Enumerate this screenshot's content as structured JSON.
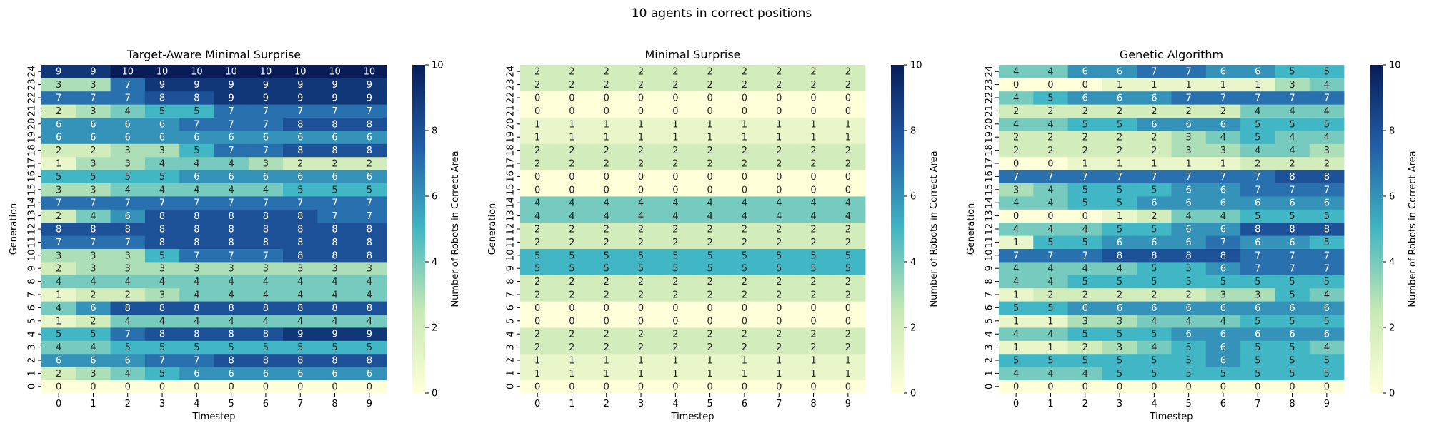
{
  "figure": {
    "suptitle": "10 agents in correct positions"
  },
  "colorbar": {
    "min": 0,
    "max": 10,
    "ticks": [
      0,
      2,
      4,
      6,
      8,
      10
    ],
    "colors": [
      "#ffffd9",
      "#c7e9b4",
      "#41b6c4",
      "#225ea8",
      "#081d58"
    ]
  },
  "chart_data": [
    {
      "type": "heatmap",
      "title": "Target-Aware Minimal Surprise",
      "xlabel": "Timestep",
      "ylabel": "Generation",
      "colorbar_label": "Number of Robots in Correct Area",
      "x": [
        0,
        1,
        2,
        3,
        4,
        5,
        6,
        7,
        8,
        9
      ],
      "y": [
        0,
        1,
        2,
        3,
        4,
        5,
        6,
        7,
        8,
        9,
        10,
        11,
        12,
        13,
        14,
        15,
        16,
        17,
        18,
        19,
        20,
        21,
        22,
        23,
        24
      ],
      "values": [
        [
          0,
          0,
          0,
          0,
          0,
          0,
          0,
          0,
          0,
          0
        ],
        [
          2,
          3,
          4,
          5,
          6,
          6,
          6,
          6,
          6,
          6
        ],
        [
          6,
          6,
          6,
          7,
          7,
          8,
          8,
          8,
          8,
          8
        ],
        [
          4,
          4,
          5,
          5,
          5,
          5,
          5,
          5,
          5,
          5
        ],
        [
          5,
          5,
          7,
          8,
          8,
          8,
          8,
          9,
          9,
          9
        ],
        [
          1,
          2,
          4,
          4,
          4,
          4,
          4,
          4,
          4,
          4
        ],
        [
          4,
          6,
          8,
          8,
          8,
          8,
          8,
          8,
          8,
          8
        ],
        [
          1,
          2,
          2,
          3,
          4,
          4,
          4,
          4,
          4,
          4
        ],
        [
          4,
          4,
          4,
          4,
          4,
          4,
          4,
          4,
          4,
          4
        ],
        [
          2,
          3,
          3,
          3,
          3,
          3,
          3,
          3,
          3,
          3
        ],
        [
          3,
          3,
          3,
          5,
          7,
          7,
          7,
          8,
          8,
          8
        ],
        [
          7,
          7,
          7,
          8,
          8,
          8,
          8,
          8,
          8,
          8
        ],
        [
          8,
          8,
          8,
          8,
          8,
          8,
          8,
          8,
          8,
          8
        ],
        [
          2,
          4,
          6,
          8,
          8,
          8,
          8,
          8,
          7,
          7
        ],
        [
          7,
          7,
          7,
          7,
          7,
          7,
          7,
          7,
          7,
          7
        ],
        [
          3,
          3,
          4,
          4,
          4,
          4,
          4,
          5,
          5,
          5
        ],
        [
          5,
          5,
          5,
          5,
          6,
          6,
          6,
          6,
          6,
          6
        ],
        [
          1,
          3,
          3,
          4,
          4,
          4,
          3,
          2,
          2,
          2
        ],
        [
          2,
          2,
          3,
          3,
          5,
          7,
          7,
          8,
          8,
          8
        ],
        [
          6,
          6,
          6,
          6,
          6,
          6,
          6,
          6,
          6,
          6
        ],
        [
          6,
          6,
          6,
          6,
          7,
          7,
          7,
          8,
          8,
          8
        ],
        [
          2,
          3,
          4,
          5,
          5,
          7,
          7,
          7,
          7,
          7
        ],
        [
          7,
          7,
          7,
          8,
          8,
          9,
          9,
          9,
          9,
          9
        ],
        [
          3,
          3,
          7,
          9,
          9,
          9,
          9,
          9,
          9,
          9
        ],
        [
          9,
          9,
          10,
          10,
          10,
          10,
          10,
          10,
          10,
          10
        ]
      ]
    },
    {
      "type": "heatmap",
      "title": "Minimal Surprise",
      "xlabel": "Timestep",
      "ylabel": "Generation",
      "colorbar_label": "Number of Robots in Correct Area",
      "x": [
        0,
        1,
        2,
        3,
        4,
        5,
        6,
        7,
        8,
        9
      ],
      "y": [
        0,
        1,
        2,
        3,
        4,
        5,
        6,
        7,
        8,
        9,
        10,
        11,
        12,
        13,
        14,
        15,
        16,
        17,
        18,
        19,
        20,
        21,
        22,
        23,
        24
      ],
      "values": [
        [
          0,
          0,
          0,
          0,
          0,
          0,
          0,
          0,
          0,
          0
        ],
        [
          1,
          1,
          1,
          1,
          1,
          1,
          1,
          1,
          1,
          1
        ],
        [
          1,
          1,
          1,
          1,
          1,
          1,
          1,
          1,
          1,
          1
        ],
        [
          2,
          2,
          2,
          2,
          2,
          2,
          2,
          2,
          2,
          2
        ],
        [
          2,
          2,
          2,
          2,
          2,
          2,
          2,
          2,
          2,
          2
        ],
        [
          0,
          0,
          0,
          0,
          0,
          0,
          0,
          0,
          0,
          0
        ],
        [
          0,
          0,
          0,
          0,
          0,
          0,
          0,
          0,
          0,
          0
        ],
        [
          2,
          2,
          2,
          2,
          2,
          2,
          2,
          2,
          2,
          2
        ],
        [
          2,
          2,
          2,
          2,
          2,
          2,
          2,
          2,
          2,
          2
        ],
        [
          5,
          5,
          5,
          5,
          5,
          5,
          5,
          5,
          5,
          5
        ],
        [
          5,
          5,
          5,
          5,
          5,
          5,
          5,
          5,
          5,
          5
        ],
        [
          2,
          2,
          2,
          2,
          2,
          2,
          2,
          2,
          2,
          2
        ],
        [
          2,
          2,
          2,
          2,
          2,
          2,
          2,
          2,
          2,
          2
        ],
        [
          4,
          4,
          4,
          4,
          4,
          4,
          4,
          4,
          4,
          4
        ],
        [
          4,
          4,
          4,
          4,
          4,
          4,
          4,
          4,
          4,
          4
        ],
        [
          0,
          0,
          0,
          0,
          0,
          0,
          0,
          0,
          0,
          0
        ],
        [
          0,
          0,
          0,
          0,
          0,
          0,
          0,
          0,
          0,
          0
        ],
        [
          2,
          2,
          2,
          2,
          2,
          2,
          2,
          2,
          2,
          2
        ],
        [
          2,
          2,
          2,
          2,
          2,
          2,
          2,
          2,
          2,
          2
        ],
        [
          1,
          1,
          1,
          1,
          1,
          1,
          1,
          1,
          1,
          1
        ],
        [
          1,
          1,
          1,
          1,
          1,
          1,
          1,
          1,
          1,
          1
        ],
        [
          0,
          0,
          0,
          0,
          0,
          0,
          0,
          0,
          0,
          0
        ],
        [
          0,
          0,
          0,
          0,
          0,
          0,
          0,
          0,
          0,
          0
        ],
        [
          2,
          2,
          2,
          2,
          2,
          2,
          2,
          2,
          2,
          2
        ],
        [
          2,
          2,
          2,
          2,
          2,
          2,
          2,
          2,
          2,
          2
        ]
      ]
    },
    {
      "type": "heatmap",
      "title": "Genetic Algorithm",
      "xlabel": "Timestep",
      "ylabel": "Generation",
      "colorbar_label": "Number of Robots in Correct Area",
      "x": [
        0,
        1,
        2,
        3,
        4,
        5,
        6,
        7,
        8,
        9
      ],
      "y": [
        0,
        1,
        2,
        3,
        4,
        5,
        6,
        7,
        8,
        9,
        10,
        11,
        12,
        13,
        14,
        15,
        16,
        17,
        18,
        19,
        20,
        21,
        22,
        23,
        24
      ],
      "values": [
        [
          0,
          0,
          0,
          0,
          0,
          0,
          0,
          0,
          0,
          0
        ],
        [
          4,
          4,
          4,
          5,
          5,
          5,
          5,
          5,
          5,
          5
        ],
        [
          5,
          5,
          5,
          5,
          5,
          5,
          6,
          5,
          5,
          5
        ],
        [
          1,
          1,
          2,
          3,
          4,
          5,
          6,
          5,
          5,
          4
        ],
        [
          4,
          4,
          5,
          5,
          5,
          6,
          6,
          6,
          6,
          6
        ],
        [
          1,
          1,
          3,
          3,
          4,
          4,
          4,
          5,
          5,
          5
        ],
        [
          5,
          5,
          6,
          6,
          6,
          6,
          6,
          6,
          6,
          6
        ],
        [
          1,
          2,
          2,
          2,
          2,
          2,
          3,
          3,
          5,
          4
        ],
        [
          4,
          4,
          5,
          5,
          5,
          5,
          5,
          5,
          5,
          5
        ],
        [
          4,
          4,
          4,
          4,
          5,
          5,
          6,
          7,
          7,
          7
        ],
        [
          7,
          7,
          7,
          8,
          8,
          8,
          8,
          7,
          7,
          7
        ],
        [
          1,
          5,
          5,
          6,
          6,
          6,
          7,
          6,
          6,
          5
        ],
        [
          4,
          4,
          4,
          5,
          5,
          6,
          6,
          8,
          8,
          8
        ],
        [
          0,
          0,
          0,
          1,
          2,
          4,
          4,
          5,
          5,
          5
        ],
        [
          4,
          4,
          5,
          5,
          6,
          6,
          6,
          6,
          6,
          6
        ],
        [
          3,
          4,
          5,
          5,
          5,
          6,
          6,
          7,
          7,
          7
        ],
        [
          7,
          7,
          7,
          7,
          7,
          7,
          7,
          7,
          8,
          8
        ],
        [
          0,
          0,
          1,
          1,
          1,
          1,
          1,
          2,
          2,
          2
        ],
        [
          2,
          2,
          2,
          2,
          2,
          3,
          3,
          4,
          4,
          3
        ],
        [
          2,
          2,
          2,
          2,
          2,
          3,
          4,
          5,
          4,
          4
        ],
        [
          4,
          4,
          5,
          5,
          6,
          6,
          6,
          5,
          5,
          5
        ],
        [
          2,
          2,
          2,
          2,
          2,
          2,
          2,
          4,
          4,
          4
        ],
        [
          4,
          5,
          6,
          6,
          6,
          7,
          7,
          7,
          7,
          7
        ],
        [
          0,
          0,
          0,
          1,
          1,
          1,
          1,
          1,
          3,
          4
        ],
        [
          4,
          4,
          6,
          6,
          7,
          7,
          6,
          6,
          5,
          5
        ]
      ]
    }
  ]
}
